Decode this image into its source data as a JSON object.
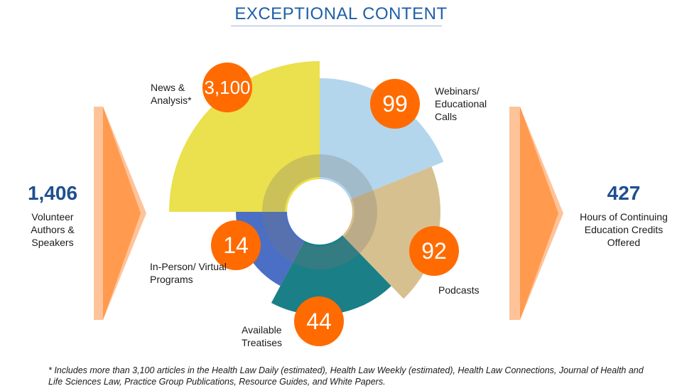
{
  "title": "EXCEPTIONAL CONTENT",
  "left_stat": {
    "value": "1,406",
    "label": "Volunteer Authors & Speakers"
  },
  "right_stat": {
    "value": "427",
    "label": "Hours of Continuing Education Credits Offered"
  },
  "colors": {
    "title": "#1f5fa8",
    "accent_orange": "#ff6b00",
    "arrow_light": "#ffc39a",
    "arrow_dark": "#ff9a4f",
    "stat_blue": "#1f4f8f"
  },
  "chart_data": {
    "type": "polar-area",
    "segments": [
      {
        "label": "News & Analysis*",
        "value": "3,100",
        "color": "#ebe04d"
      },
      {
        "label": "Webinars/ Educational Calls",
        "value": "99",
        "color": "#b3d6ec"
      },
      {
        "label": "Podcasts",
        "value": "92",
        "color": "#d7c08f"
      },
      {
        "label": "Available Treatises",
        "value": "44",
        "color": "#1a7f86"
      },
      {
        "label": "In-Person/ Virtual Programs",
        "value": "14",
        "color": "#4a6fc4"
      }
    ]
  },
  "footnote": "* Includes more than 3,100 articles in the Health Law Daily (estimated), Health Law Weekly (estimated), Health Law Connections, Journal of Health and Life Sciences Law, Practice Group Publications, Resource Guides, and White Papers."
}
